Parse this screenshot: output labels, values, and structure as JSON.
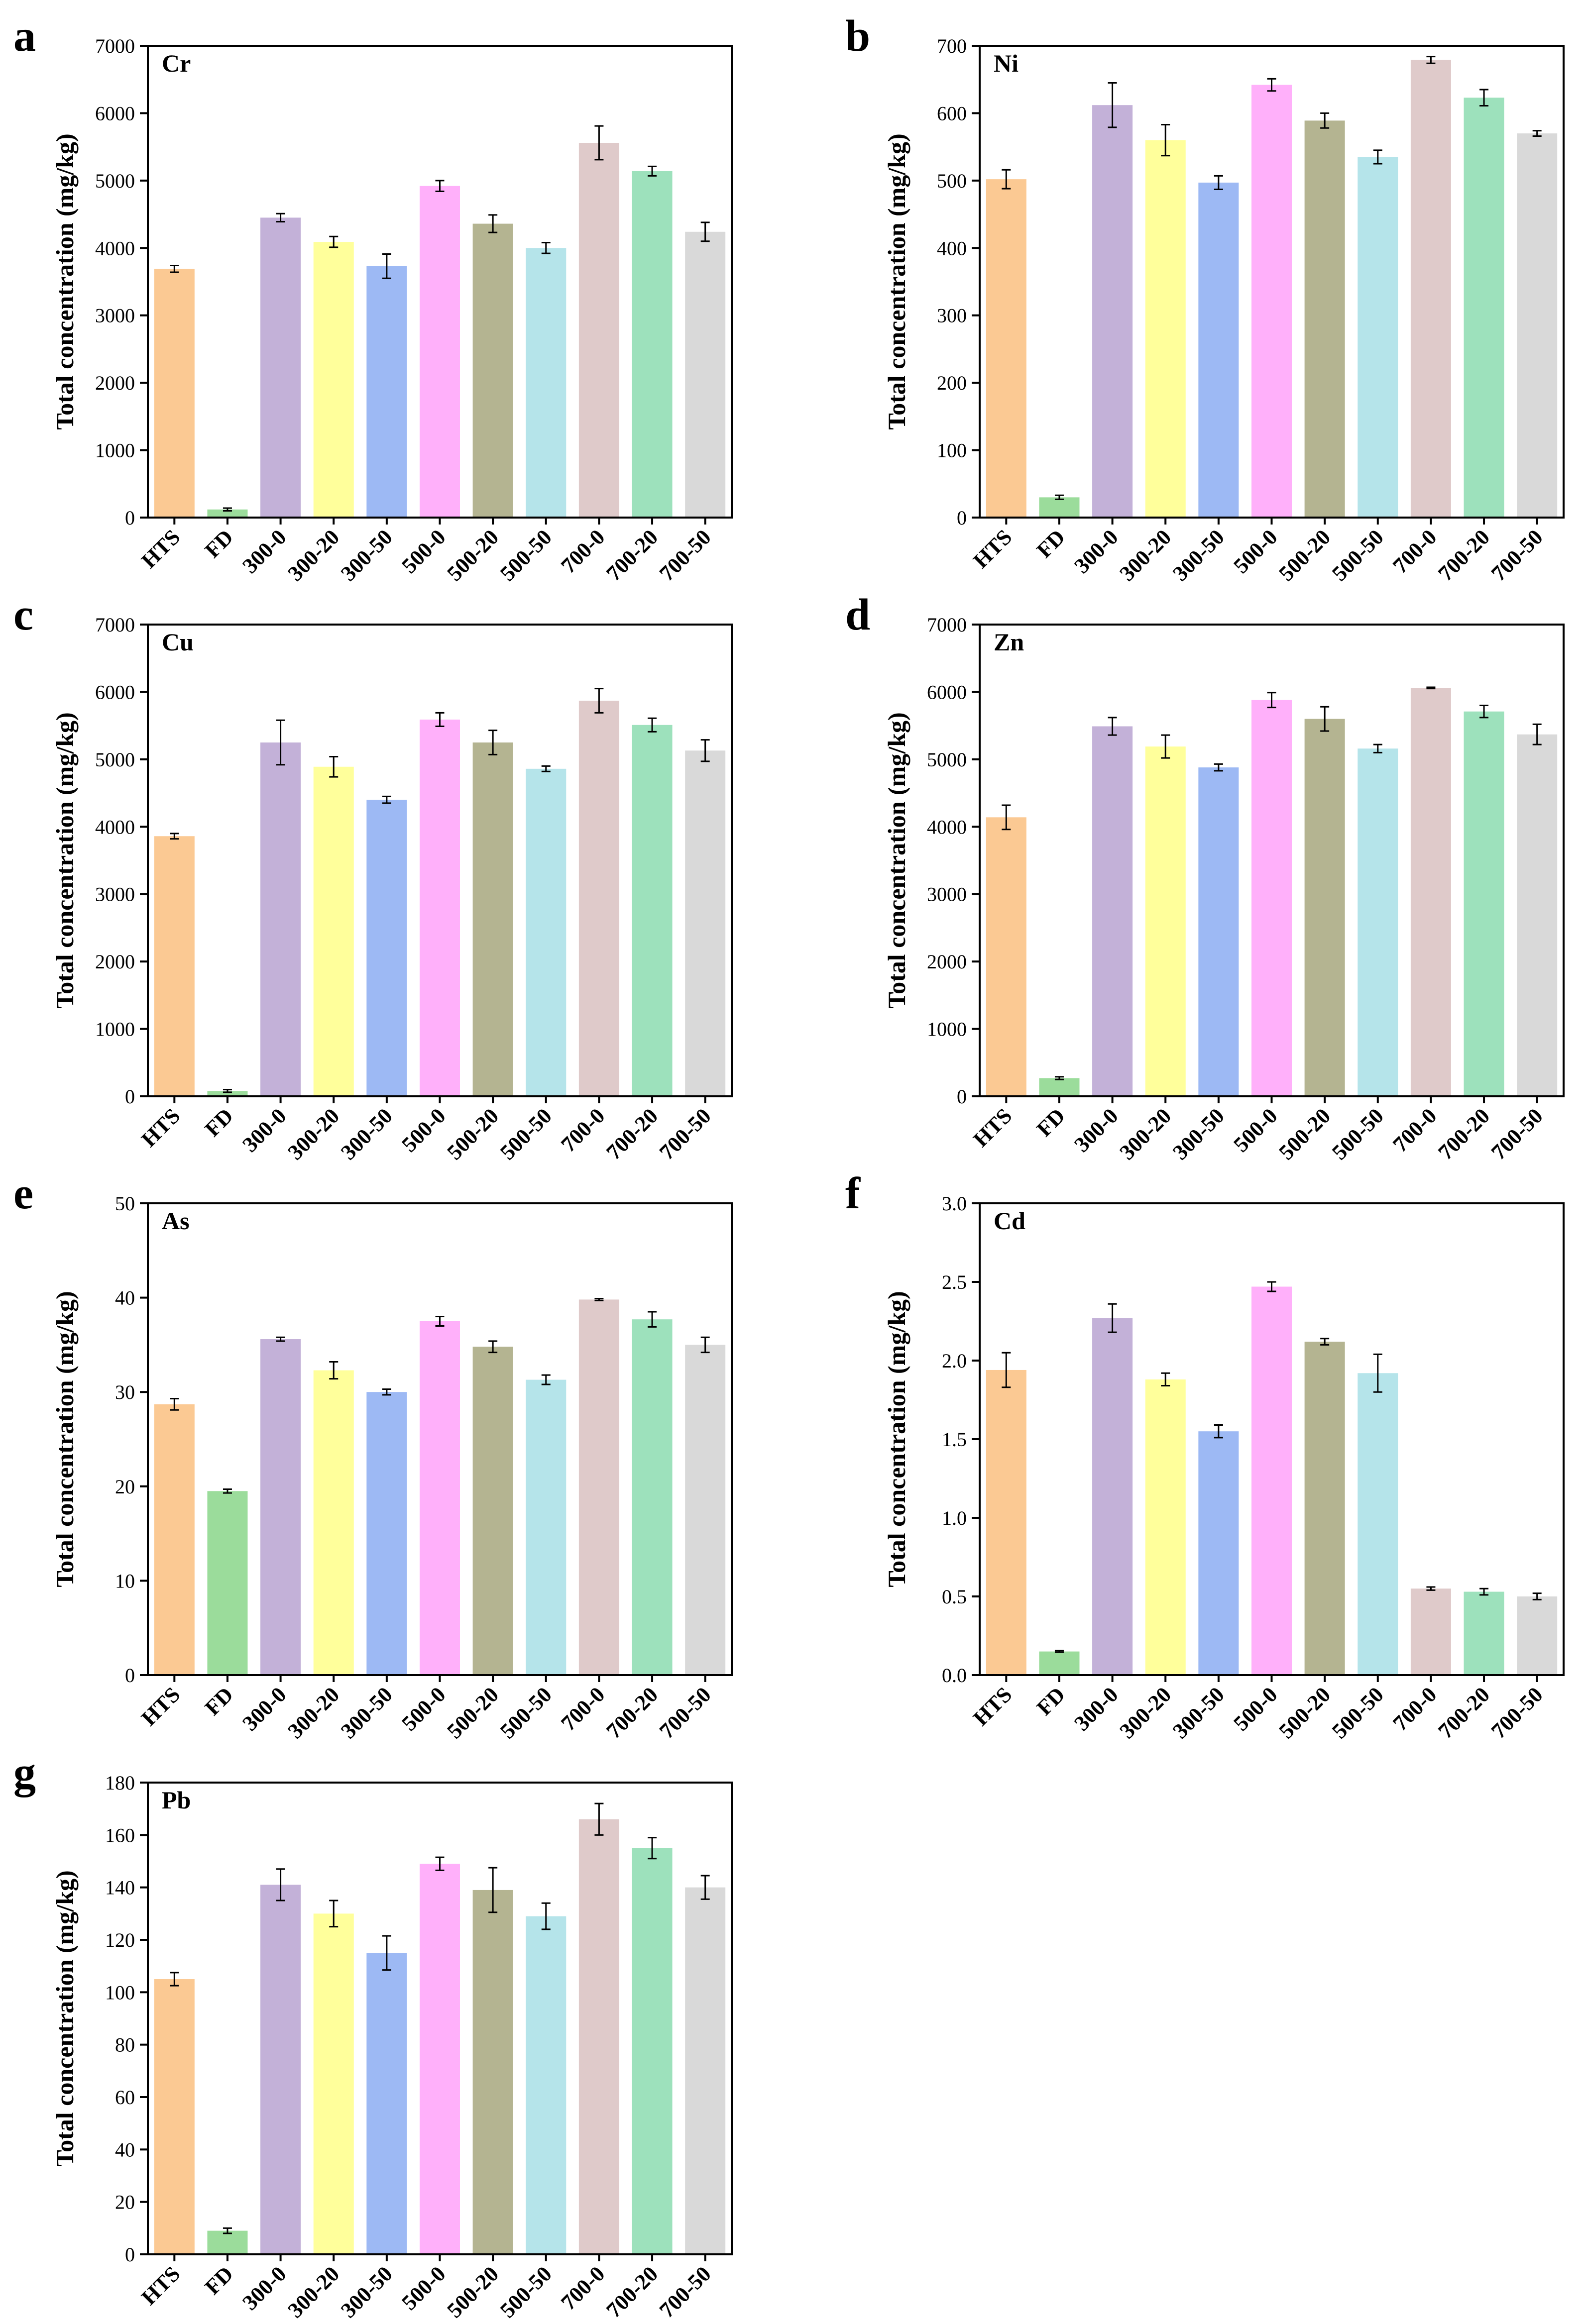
{
  "colors": [
    "#FBC993",
    "#9BDC9B",
    "#C3B1D8",
    "#FFFF9B",
    "#9DB9F4",
    "#FFB0FA",
    "#B4B491",
    "#B5E4EA",
    "#DFCACA",
    "#9DE1BC",
    "#D9D9D9"
  ],
  "chart_data": [
    {
      "type": "bar",
      "panel": "a",
      "title": "Cr",
      "ylabel": "Total concentration (mg/kg)",
      "xlabel": "",
      "ylim": [
        0,
        7000
      ],
      "yticks": [
        "0",
        "1000",
        "2000",
        "3000",
        "4000",
        "5000",
        "6000",
        "7000"
      ],
      "categories": [
        "HTS",
        "FD",
        "300-0",
        "300-20",
        "300-50",
        "500-0",
        "500-20",
        "500-50",
        "700-0",
        "700-20",
        "700-50"
      ],
      "values": [
        3690,
        120,
        4450,
        4090,
        3730,
        4920,
        4360,
        4000,
        5560,
        5140,
        4240
      ],
      "errors": [
        50,
        20,
        60,
        80,
        180,
        80,
        130,
        80,
        250,
        70,
        140
      ]
    },
    {
      "type": "bar",
      "panel": "b",
      "title": "Ni",
      "ylabel": "Total concentration (mg/kg)",
      "xlabel": "",
      "ylim": [
        0,
        700
      ],
      "yticks": [
        "0",
        "100",
        "200",
        "300",
        "400",
        "500",
        "600",
        "700"
      ],
      "categories": [
        "HTS",
        "FD",
        "300-0",
        "300-20",
        "300-50",
        "500-0",
        "500-20",
        "500-50",
        "700-0",
        "700-20",
        "700-50"
      ],
      "values": [
        502,
        30,
        612,
        560,
        497,
        642,
        589,
        535,
        679,
        623,
        570
      ],
      "errors": [
        14,
        3,
        33,
        23,
        10,
        9,
        11,
        10,
        5,
        12,
        4
      ]
    },
    {
      "type": "bar",
      "panel": "c",
      "title": "Cu",
      "ylabel": "Total concentration (mg/kg)",
      "xlabel": "",
      "ylim": [
        0,
        7000
      ],
      "yticks": [
        "0",
        "1000",
        "2000",
        "3000",
        "4000",
        "5000",
        "6000",
        "7000"
      ],
      "categories": [
        "HTS",
        "FD",
        "300-0",
        "300-20",
        "300-50",
        "500-0",
        "500-20",
        "500-50",
        "700-0",
        "700-20",
        "700-50"
      ],
      "values": [
        3860,
        80,
        5250,
        4890,
        4400,
        5590,
        5250,
        4860,
        5870,
        5510,
        5130
      ],
      "errors": [
        40,
        20,
        330,
        150,
        50,
        100,
        180,
        40,
        180,
        100,
        160
      ]
    },
    {
      "type": "bar",
      "panel": "d",
      "title": "Zn",
      "ylabel": "Total concentration (mg/kg)",
      "xlabel": "",
      "ylim": [
        0,
        7000
      ],
      "yticks": [
        "0",
        "1000",
        "2000",
        "3000",
        "4000",
        "5000",
        "6000",
        "7000"
      ],
      "categories": [
        "HTS",
        "FD",
        "300-0",
        "300-20",
        "300-50",
        "500-0",
        "500-20",
        "500-50",
        "700-0",
        "700-20",
        "700-50"
      ],
      "values": [
        4140,
        270,
        5490,
        5190,
        4880,
        5880,
        5600,
        5160,
        6060,
        5710,
        5370
      ],
      "errors": [
        180,
        20,
        130,
        170,
        50,
        110,
        180,
        60,
        10,
        90,
        150
      ]
    },
    {
      "type": "bar",
      "panel": "e",
      "title": "As",
      "ylabel": "Total concentration (mg/kg)",
      "xlabel": "",
      "ylim": [
        0,
        50
      ],
      "yticks": [
        "0",
        "10",
        "20",
        "30",
        "40",
        "50"
      ],
      "categories": [
        "HTS",
        "FD",
        "300-0",
        "300-20",
        "300-50",
        "500-0",
        "500-20",
        "500-50",
        "700-0",
        "700-20",
        "700-50"
      ],
      "values": [
        28.7,
        19.5,
        35.6,
        32.3,
        30.0,
        37.5,
        34.8,
        31.3,
        39.8,
        37.7,
        35.0
      ],
      "errors": [
        0.6,
        0.2,
        0.2,
        0.9,
        0.3,
        0.5,
        0.6,
        0.5,
        0.1,
        0.8,
        0.8
      ]
    },
    {
      "type": "bar",
      "panel": "f",
      "title": "Cd",
      "ylabel": "Total concentration (mg/kg)",
      "xlabel": "",
      "ylim": [
        0,
        3.0
      ],
      "yticks": [
        "0.0",
        "0.5",
        "1.0",
        "1.5",
        "2.0",
        "2.5",
        "3.0"
      ],
      "categories": [
        "HTS",
        "FD",
        "300-0",
        "300-20",
        "300-50",
        "500-0",
        "500-20",
        "500-50",
        "700-0",
        "700-20",
        "700-50"
      ],
      "values": [
        1.94,
        0.15,
        2.27,
        1.88,
        1.55,
        2.47,
        2.12,
        1.92,
        0.55,
        0.53,
        0.5
      ],
      "errors": [
        0.11,
        0.005,
        0.09,
        0.04,
        0.04,
        0.03,
        0.02,
        0.12,
        0.01,
        0.02,
        0.02
      ]
    },
    {
      "type": "bar",
      "panel": "g",
      "title": "Pb",
      "ylabel": "Total concentration (mg/kg)",
      "xlabel": "",
      "ylim": [
        0,
        180
      ],
      "yticks": [
        "0",
        "20",
        "40",
        "60",
        "80",
        "100",
        "120",
        "140",
        "160",
        "180"
      ],
      "categories": [
        "HTS",
        "FD",
        "300-0",
        "300-20",
        "300-50",
        "500-0",
        "500-20",
        "500-50",
        "700-0",
        "700-20",
        "700-50"
      ],
      "values": [
        105,
        9,
        141,
        130,
        115,
        149,
        139,
        129,
        166,
        155,
        140
      ],
      "errors": [
        2.5,
        1,
        6,
        5,
        6.5,
        2.5,
        8.5,
        5,
        6,
        4,
        4.5
      ]
    }
  ]
}
